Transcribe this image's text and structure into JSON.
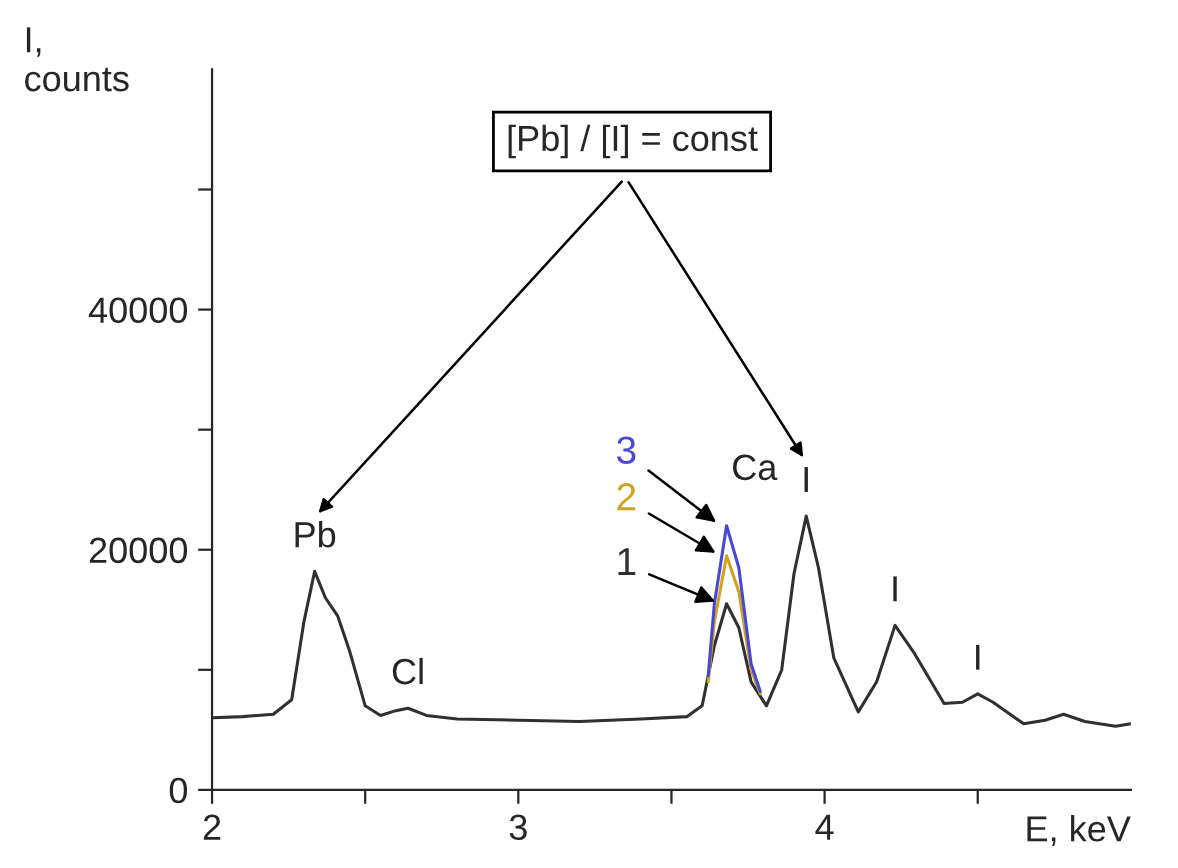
{
  "chart_data": {
    "type": "line",
    "xlabel": "E, keV",
    "ylabel": "I,\ncounts",
    "x": [
      2.0,
      2.1,
      2.2,
      2.26,
      2.3,
      2.335,
      2.37,
      2.41,
      2.45,
      2.5,
      2.55,
      2.6,
      2.64,
      2.7,
      2.8,
      3.0,
      3.2,
      3.4,
      3.55,
      3.6,
      3.64,
      3.68,
      3.72,
      3.76,
      3.81,
      3.86,
      3.9,
      3.94,
      3.98,
      4.03,
      4.11,
      4.17,
      4.23,
      4.29,
      4.39,
      4.45,
      4.5,
      4.55,
      4.65,
      4.72,
      4.78,
      4.85,
      4.95,
      5.0
    ],
    "series": [
      {
        "name": "1",
        "color": "#303030",
        "values": [
          6000,
          6100,
          6300,
          7500,
          14000,
          18200,
          16000,
          14500,
          11500,
          7000,
          6200,
          6600,
          6800,
          6200,
          5900,
          5800,
          5700,
          5900,
          6100,
          7000,
          12000,
          15500,
          13500,
          9000,
          7000,
          10000,
          18000,
          22800,
          18500,
          11000,
          6500,
          9000,
          13700,
          11500,
          7200,
          7300,
          8000,
          7300,
          5500,
          5800,
          6300,
          5700,
          5300,
          5500
        ]
      },
      {
        "name": "2",
        "color": "#d4a020",
        "x": [
          3.62,
          3.64,
          3.68,
          3.72,
          3.76,
          3.79
        ],
        "values": [
          9000,
          14000,
          19500,
          16500,
          10000,
          8000
        ]
      },
      {
        "name": "3",
        "color": "#4848d8",
        "x": [
          3.62,
          3.64,
          3.68,
          3.72,
          3.76,
          3.79
        ],
        "values": [
          9500,
          15500,
          22000,
          18500,
          10500,
          8200
        ]
      }
    ],
    "xlim": [
      2,
      5
    ],
    "ylim": [
      0,
      60000
    ],
    "xticks": [
      2,
      {
        "value": 2.5,
        "label": null
      },
      3,
      {
        "value": 3.5,
        "label": null
      },
      4,
      {
        "value": 4.5,
        "label": null
      }
    ],
    "yticks": [
      0,
      {
        "value": 10000,
        "label": null
      },
      20000,
      {
        "value": 30000,
        "label": null
      },
      40000,
      {
        "value": 50000,
        "label": null
      }
    ],
    "annotations": [
      {
        "text": "Pb",
        "x": 2.335,
        "y": 18200
      },
      {
        "text": "Cl",
        "x": 2.64,
        "y": 6800
      },
      "Ca",
      {
        "text": "I",
        "x": 3.94,
        "y": 22800
      },
      {
        "text": "I",
        "x": 4.23,
        "y": 13700
      },
      {
        "text": "I",
        "x": 4.5,
        "y": 8000
      },
      "[Pb] / [I] = const"
    ],
    "grid": false,
    "legend": false,
    "marker": "none",
    "line_style": "solid"
  }
}
